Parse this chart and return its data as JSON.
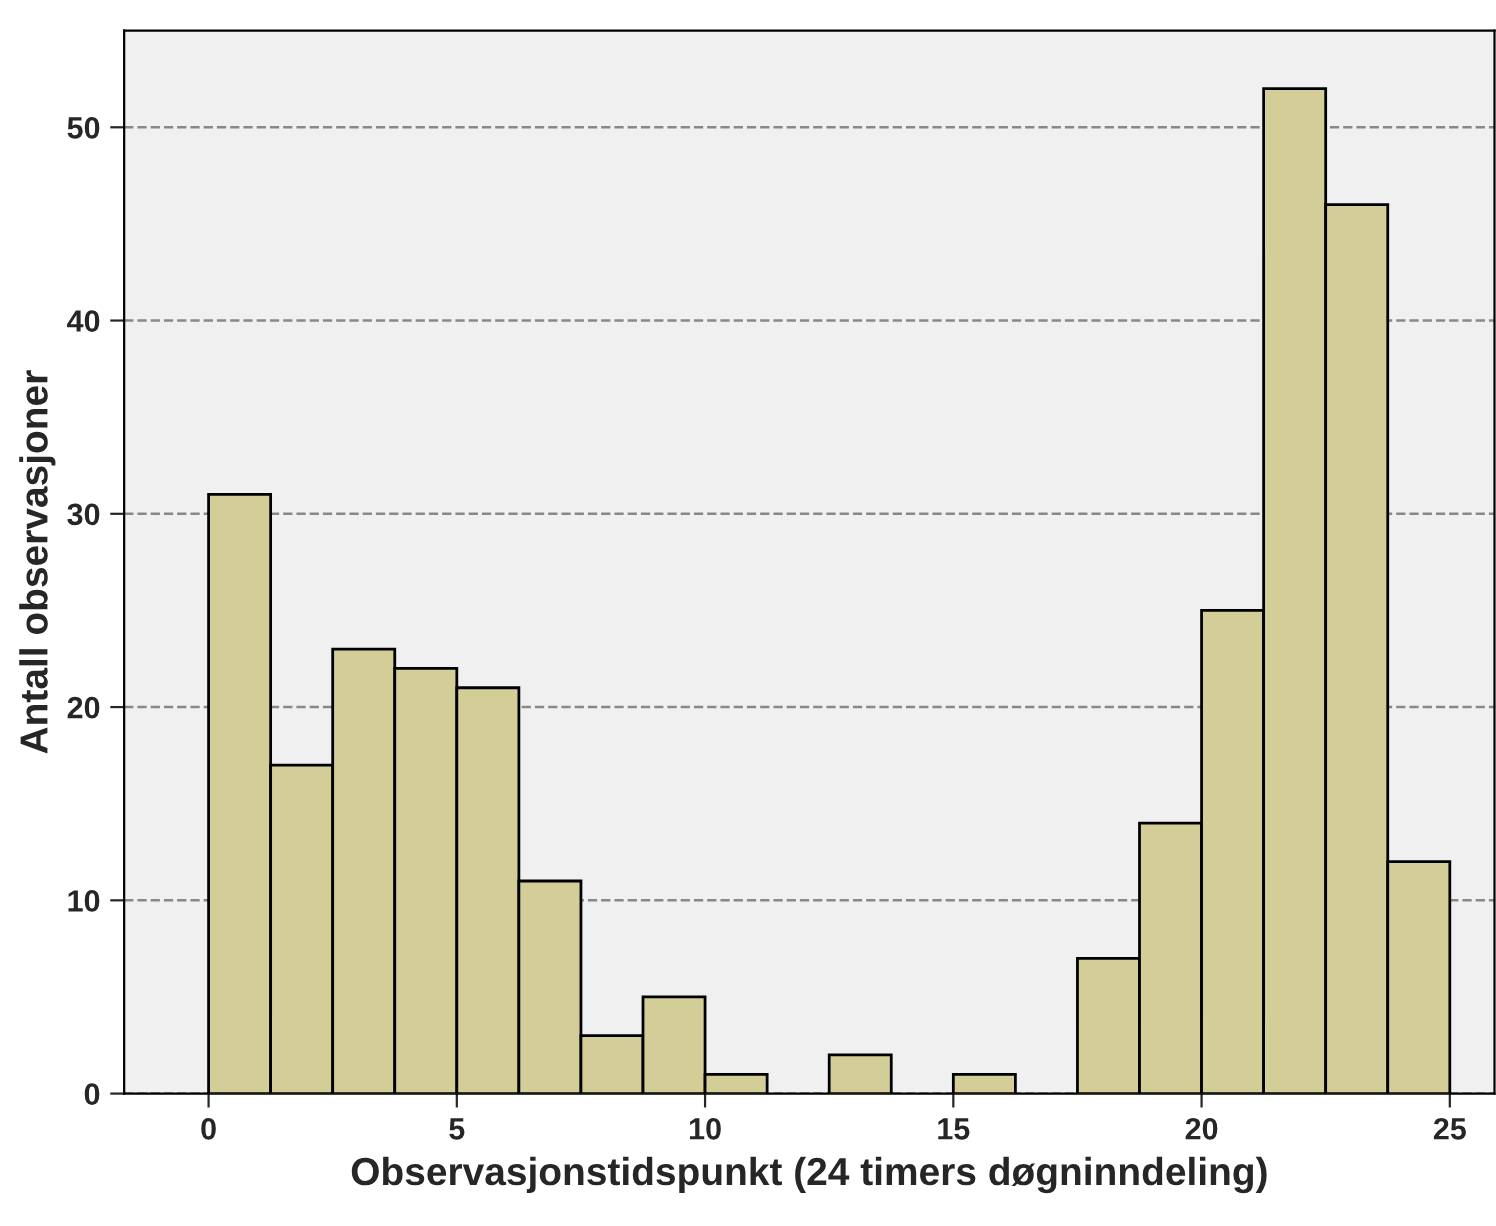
{
  "chart_data": {
    "type": "histogram",
    "xlabel": "Observasjonstidspunkt (24 timers døgninndeling)",
    "ylabel": "Antall observasjoner",
    "bins": [
      0,
      1.25,
      2.5,
      3.75,
      5,
      6.25,
      7.5,
      8.75,
      10,
      11.25,
      12.5,
      13.75,
      15,
      16.25,
      17.5,
      18.75,
      20,
      21.25,
      22.5,
      23.75,
      25
    ],
    "values": [
      31,
      17,
      23,
      22,
      21,
      11,
      3,
      5,
      1,
      0,
      2,
      0,
      1,
      0,
      7,
      14,
      25,
      52,
      46,
      12
    ],
    "color": "#d3ce97",
    "xlim": [
      -1.7,
      25.9
    ],
    "xticks": [
      0,
      5,
      10,
      15,
      20,
      25
    ],
    "ylim": [
      0,
      55
    ],
    "yticks": [
      0,
      10,
      20,
      30,
      40,
      50
    ],
    "grid": "y"
  }
}
